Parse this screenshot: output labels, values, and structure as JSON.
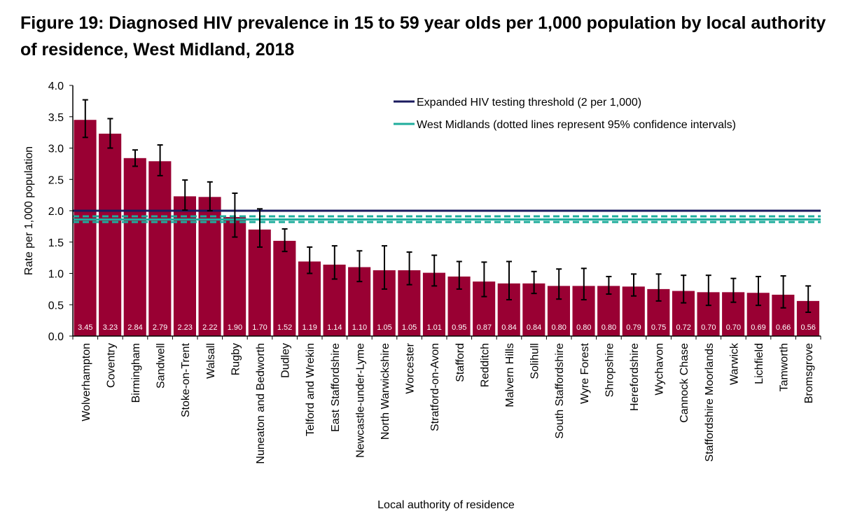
{
  "figure": {
    "title": "Figure 19: Diagnosed HIV prevalence in 15 to 59 year olds per 1,000 population by local authority of residence, West Midland, 2018"
  },
  "colors": {
    "bar": "#990033",
    "bar_label": "#ffffff",
    "threshold_line": "#1a1a5e",
    "region_line": "#1fad9c",
    "error_bar": "#000000",
    "axis": "#000000"
  },
  "chart_data": {
    "type": "bar",
    "title": "Figure 19: Diagnosed HIV prevalence in 15 to 59 year olds per 1,000 population by local authority of residence, West Midland, 2018",
    "xlabel": "Local authority of residence",
    "ylabel": "Rate per 1,000 population",
    "ylim": [
      0,
      4.0
    ],
    "yticks": [
      "0.0",
      "0.5",
      "1.0",
      "1.5",
      "2.0",
      "2.5",
      "3.0",
      "3.5",
      "4.0"
    ],
    "ytick_values": [
      0,
      0.5,
      1.0,
      1.5,
      2.0,
      2.5,
      3.0,
      3.5,
      4.0
    ],
    "grid": false,
    "legend_position": "top-right",
    "categories": [
      "Wolverhampton",
      "Coventry",
      "Birmingham",
      "Sandwell",
      "Stoke-on-Trent",
      "Walsall",
      "Rugby",
      "Nuneaton and Bedworth",
      "Dudley",
      "Telford and Wrekin",
      "East Staffordshire",
      "Newcastle-under-Lyme",
      "North Warwickshire",
      "Worcester",
      "Stratford-on-Avon",
      "Stafford",
      "Redditch",
      "Malvern Hills",
      "Solihull",
      "South Staffordshire",
      "Wyre Forest",
      "Shropshire",
      "Herefordshire",
      "Wychavon",
      "Cannock Chase",
      "Staffordshire Moorlands",
      "Warwick",
      "Lichfield",
      "Tamworth",
      "Bromsgrove"
    ],
    "values": [
      3.45,
      3.23,
      2.84,
      2.79,
      2.23,
      2.22,
      1.9,
      1.7,
      1.52,
      1.19,
      1.14,
      1.1,
      1.05,
      1.05,
      1.01,
      0.95,
      0.87,
      0.84,
      0.84,
      0.8,
      0.8,
      0.8,
      0.79,
      0.75,
      0.72,
      0.7,
      0.7,
      0.69,
      0.66,
      0.56
    ],
    "value_labels": [
      "3.45",
      "3.23",
      "2.84",
      "2.79",
      "2.23",
      "2.22",
      "1.90",
      "1.70",
      "1.52",
      "1.19",
      "1.14",
      "1.10",
      "1.05",
      "1.05",
      "1.01",
      "0.95",
      "0.87",
      "0.84",
      "0.84",
      "0.80",
      "0.80",
      "0.80",
      "0.79",
      "0.75",
      "0.72",
      "0.70",
      "0.70",
      "0.69",
      "0.66",
      "0.56"
    ],
    "ci_lower": [
      3.17,
      3.0,
      2.71,
      2.56,
      2.01,
      2.0,
      1.58,
      1.42,
      1.35,
      1.0,
      0.91,
      0.87,
      0.75,
      0.82,
      0.8,
      0.75,
      0.63,
      0.58,
      0.68,
      0.59,
      0.58,
      0.67,
      0.64,
      0.56,
      0.53,
      0.49,
      0.54,
      0.49,
      0.45,
      0.38
    ],
    "ci_upper": [
      3.77,
      3.47,
      2.97,
      3.05,
      2.49,
      2.46,
      2.28,
      2.03,
      1.71,
      1.42,
      1.44,
      1.36,
      1.44,
      1.34,
      1.29,
      1.19,
      1.18,
      1.19,
      1.03,
      1.07,
      1.08,
      0.95,
      0.99,
      0.99,
      0.97,
      0.97,
      0.92,
      0.95,
      0.96,
      0.8
    ],
    "reference_lines": [
      {
        "name": "Expanded HIV testing threshold (2 per 1,000)",
        "value": 2.0,
        "style": "solid",
        "color": "#1a1a5e"
      },
      {
        "name": "West Midlands (dotted lines represent 95% confidence intervals)",
        "value": 1.86,
        "ci_lower": 1.82,
        "ci_upper": 1.91,
        "style": "solid",
        "ci_style": "dashed",
        "color": "#1fad9c"
      }
    ],
    "legend": [
      {
        "label": "Expanded HIV testing threshold (2 per 1,000)",
        "color": "#1a1a5e"
      },
      {
        "label": "West Midlands (dotted lines represent 95% confidence intervals)",
        "color": "#1fad9c"
      }
    ]
  }
}
